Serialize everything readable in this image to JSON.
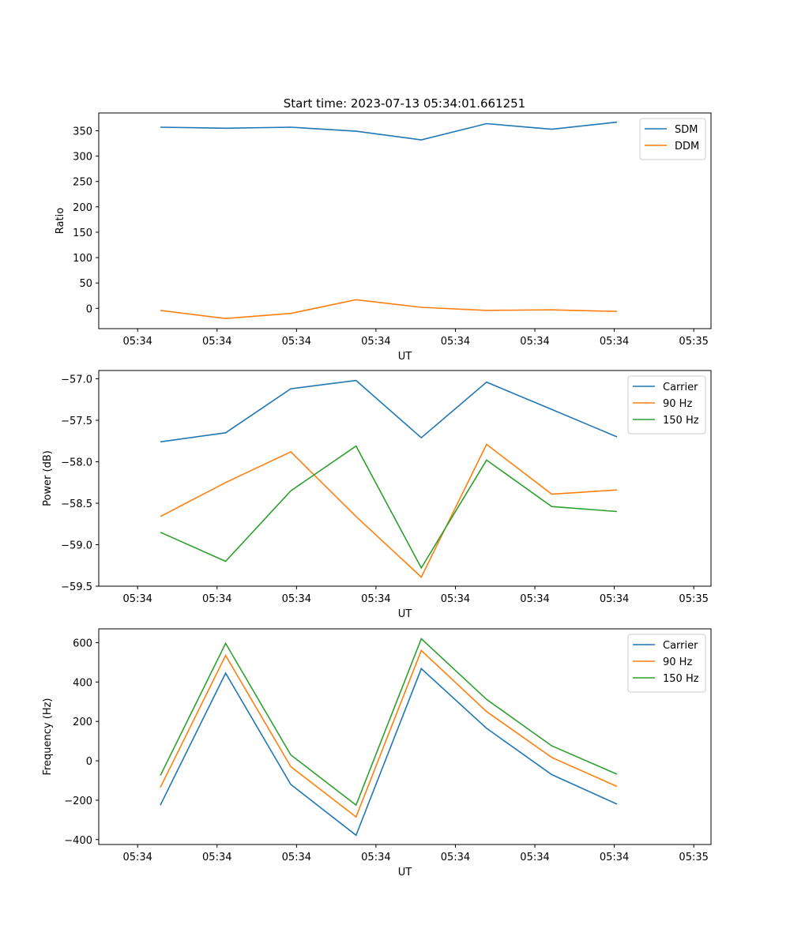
{
  "figure": {
    "title": "Start time: 2023-07-13 05:34:01.661251"
  },
  "chart_data": [
    {
      "type": "line",
      "title": "Start time: 2023-07-13 05:34:01.661251",
      "xlabel": "UT",
      "ylabel": "Ratio",
      "x_ticks": [
        "05:34",
        "05:34",
        "05:34",
        "05:34",
        "05:34",
        "05:34",
        "05:34",
        "05:35"
      ],
      "x": [
        0.5,
        1.16,
        1.82,
        2.48,
        3.14,
        3.8,
        4.46,
        5.12
      ],
      "xlim": [
        -0.0,
        6.0
      ],
      "ylim": [
        -40,
        385
      ],
      "y_ticks": [
        0,
        50,
        100,
        150,
        200,
        250,
        300,
        350
      ],
      "y_tick_labels": [
        "0",
        "50",
        "100",
        "150",
        "200",
        "250",
        "300",
        "350"
      ],
      "legend": "top-right",
      "series": [
        {
          "name": "SDM",
          "color": "#1f77b4",
          "values": [
            357,
            355,
            357,
            349,
            332,
            364,
            353,
            367
          ]
        },
        {
          "name": "DDM",
          "color": "#ff7f0e",
          "values": [
            -4,
            -20,
            -10,
            17,
            2,
            -4,
            -3,
            -6
          ]
        }
      ]
    },
    {
      "type": "line",
      "title": "",
      "xlabel": "UT",
      "ylabel": "Power (dB)",
      "x_ticks": [
        "05:34",
        "05:34",
        "05:34",
        "05:34",
        "05:34",
        "05:34",
        "05:34",
        "05:35"
      ],
      "x": [
        0.5,
        1.16,
        1.82,
        2.48,
        3.14,
        3.8,
        4.46,
        5.12
      ],
      "xlim": [
        -0.0,
        6.0
      ],
      "ylim": [
        -59.5,
        -56.9
      ],
      "y_ticks": [
        -59.5,
        -59.0,
        -58.5,
        -58.0,
        -57.5,
        -57.0
      ],
      "y_tick_labels": [
        "−59.5",
        "−59.0",
        "−58.5",
        "−58.0",
        "−57.5",
        "−57.0"
      ],
      "legend": "top-right",
      "series": [
        {
          "name": "Carrier",
          "color": "#1f77b4",
          "values": [
            -57.76,
            -57.65,
            -57.12,
            -57.02,
            -57.71,
            -57.04,
            -57.37,
            -57.7
          ]
        },
        {
          "name": "90 Hz",
          "color": "#ff7f0e",
          "values": [
            -58.66,
            -58.25,
            -57.88,
            -58.66,
            -59.39,
            -57.79,
            -58.39,
            -58.34
          ]
        },
        {
          "name": "150 Hz",
          "color": "#2ca02c",
          "values": [
            -58.85,
            -59.2,
            -58.35,
            -57.81,
            -59.28,
            -57.98,
            -58.54,
            -58.6
          ]
        }
      ]
    },
    {
      "type": "line",
      "title": "",
      "xlabel": "UT",
      "ylabel": "Frequency (Hz)",
      "x_ticks": [
        "05:34",
        "05:34",
        "05:34",
        "05:34",
        "05:34",
        "05:34",
        "05:34",
        "05:35"
      ],
      "x": [
        0.5,
        1.16,
        1.82,
        2.48,
        3.14,
        3.8,
        4.46,
        5.12
      ],
      "xlim": [
        -0.0,
        6.0
      ],
      "ylim": [
        -425,
        670
      ],
      "y_ticks": [
        -400,
        -200,
        0,
        200,
        400,
        600
      ],
      "y_tick_labels": [
        "−400",
        "−200",
        "0",
        "200",
        "400",
        "600"
      ],
      "legend": "top-right",
      "series": [
        {
          "name": "Carrier",
          "color": "#1f77b4",
          "values": [
            -225,
            445,
            -120,
            -378,
            468,
            165,
            -70,
            -220
          ]
        },
        {
          "name": "90 Hz",
          "color": "#ff7f0e",
          "values": [
            -135,
            535,
            -30,
            -285,
            560,
            250,
            17,
            -130
          ]
        },
        {
          "name": "150 Hz",
          "color": "#2ca02c",
          "values": [
            -75,
            596,
            30,
            -225,
            620,
            312,
            76,
            -68
          ]
        }
      ]
    }
  ]
}
